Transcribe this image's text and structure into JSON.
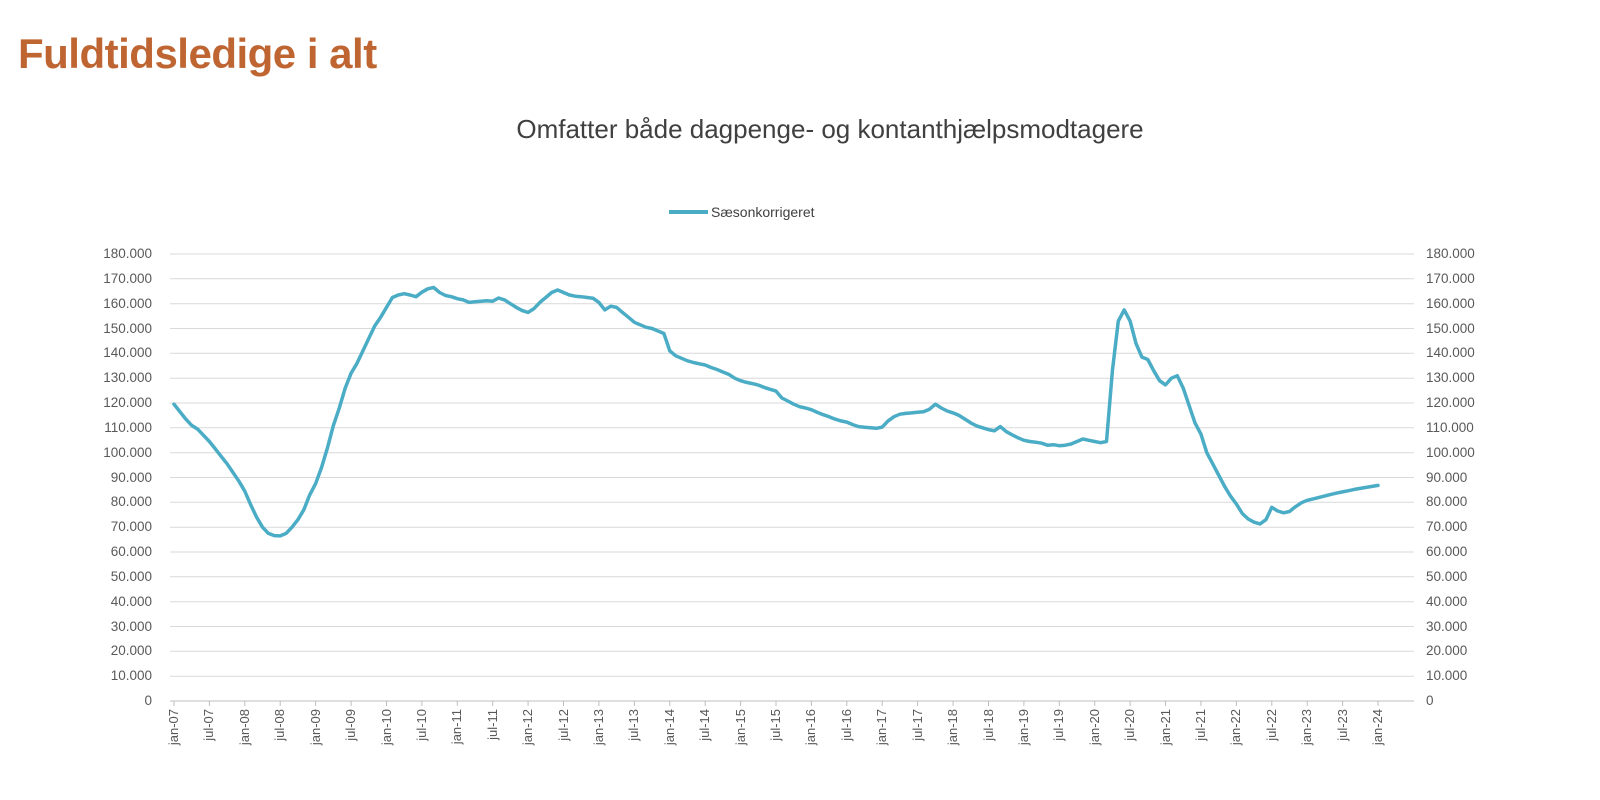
{
  "title": {
    "text": "Fuldtidsledige i alt",
    "color": "#BF6532"
  },
  "chart": {
    "subtitle": "Omfatter både dagpenge- og kontanthjælpsmodtagere",
    "legend": {
      "label": "Sæsonkorrigeret"
    }
  },
  "colors": {
    "series_line": "#4BACC6",
    "gridline": "#D9D9D9",
    "axis_line": "#BFBFBF",
    "axis_text": "#595959",
    "subtitle_text": "#404040",
    "title_text": "#BF6532"
  },
  "chart_data": {
    "type": "line",
    "title": "Omfatter både dagpenge- og kontanthjælpsmodtagere",
    "xlabel": "",
    "ylabel": "",
    "x_unit": "month",
    "x_start": "jan-07",
    "x_end": "jan-24",
    "y_min": 0,
    "y_max": 180000,
    "y_step": 10000,
    "grid": "horizontal",
    "legend_position": "top-center",
    "y_tick_labels": [
      "0",
      "10.000",
      "20.000",
      "30.000",
      "40.000",
      "50.000",
      "60.000",
      "70.000",
      "80.000",
      "90.000",
      "100.000",
      "110.000",
      "120.000",
      "130.000",
      "140.000",
      "150.000",
      "160.000",
      "170.000",
      "180.000"
    ],
    "x_tick_labels": [
      "jan-07",
      "jul-07",
      "jan-08",
      "jul-08",
      "jan-09",
      "jul-09",
      "jan-10",
      "jul-10",
      "jan-11",
      "jul-11",
      "jan-12",
      "jul-12",
      "jan-13",
      "jul-13",
      "jan-14",
      "jul-14",
      "jan-15",
      "jul-15",
      "jan-16",
      "jul-16",
      "jan-17",
      "jul-17",
      "jan-18",
      "jul-18",
      "jan-19",
      "jul-19",
      "jan-20",
      "jul-20",
      "jan-21",
      "jul-21",
      "jan-22",
      "jul-22",
      "jan-23",
      "jul-23",
      "jan-24"
    ],
    "x_months_per_point": 1,
    "series": [
      {
        "name": "Sæsonkorrigeret",
        "color": "#4BACC6",
        "values": [
          119500,
          116500,
          113500,
          111000,
          109500,
          107000,
          104500,
          101500,
          98500,
          95500,
          92000,
          88500,
          84500,
          79000,
          74000,
          70000,
          67500,
          66600,
          66500,
          67500,
          70000,
          73000,
          77000,
          83000,
          87500,
          94000,
          102000,
          111000,
          118000,
          126000,
          132000,
          136000,
          141000,
          146000,
          151000,
          154500,
          158500,
          162500,
          163500,
          164000,
          163500,
          162800,
          164600,
          166000,
          166500,
          164500,
          163300,
          162800,
          162000,
          161500,
          160500,
          160800,
          161000,
          161200,
          161000,
          162300,
          161500,
          160000,
          158500,
          157200,
          156500,
          158000,
          160500,
          162500,
          164500,
          165500,
          164500,
          163500,
          163000,
          162800,
          162500,
          162200,
          160500,
          157500,
          159000,
          158500,
          156500,
          154500,
          152500,
          151500,
          150500,
          150000,
          149000,
          148000,
          141000,
          139000,
          138000,
          137000,
          136300,
          135800,
          135300,
          134300,
          133500,
          132500,
          131500,
          130000,
          129000,
          128300,
          127800,
          127200,
          126300,
          125500,
          124800,
          122000,
          120800,
          119500,
          118500,
          118000,
          117300,
          116200,
          115300,
          114500,
          113500,
          112800,
          112300,
          111300,
          110500,
          110200,
          110000,
          109800,
          110300,
          112800,
          114500,
          115500,
          115800,
          116000,
          116300,
          116500,
          117500,
          119500,
          118000,
          116800,
          116000,
          115000,
          113500,
          112000,
          110800,
          110000,
          109300,
          108800,
          110500,
          108500,
          107200,
          106000,
          105000,
          104500,
          104200,
          103800,
          103000,
          103200,
          102800,
          103000,
          103500,
          104500,
          105500,
          105000,
          104500,
          104000,
          104500,
          133000,
          153000,
          157500,
          153000,
          144000,
          138500,
          137500,
          133000,
          129000,
          127300,
          130000,
          131000,
          126000,
          119000,
          112000,
          107500,
          100000,
          95500,
          91000,
          86500,
          82500,
          79300,
          75500,
          73300,
          72000,
          71300,
          73000,
          78000,
          76500,
          75800,
          76300,
          78200,
          79800,
          80800,
          81400,
          82000,
          82600,
          83200,
          83700,
          84200,
          84700,
          85200,
          85600,
          86000,
          86400,
          86800
        ]
      }
    ]
  }
}
